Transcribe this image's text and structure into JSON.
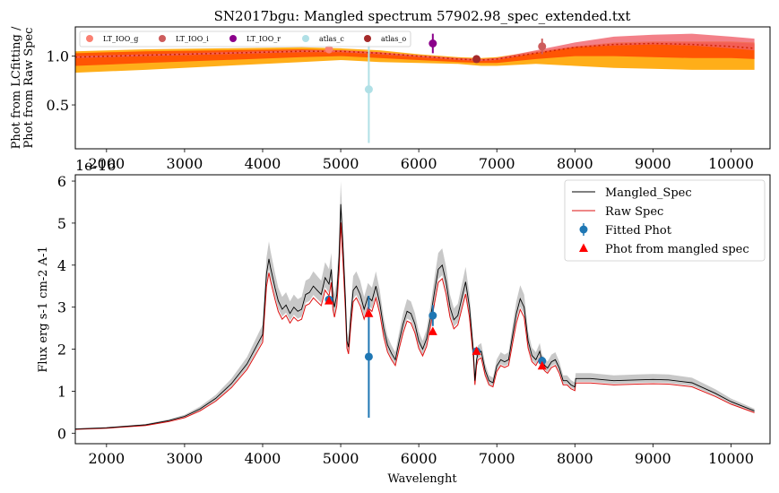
{
  "colors": {
    "LT_IOO_g": "#fa8072",
    "LT_IOO_i": "#cd5c5c",
    "LT_IOO_r": "#8b008b",
    "atlas_c": "#b0e0e6",
    "atlas_o": "#a52a2a",
    "band_fill_1": "#ffa500",
    "band_fill_2": "#ff4500",
    "band_fill_3": "#f0606a",
    "mangled": "#000000",
    "raw": "#dd1111",
    "fitted": "#1f77b4",
    "mangled_phot": "#ff0000",
    "shade": "#c8c8c8"
  },
  "chart_data": [
    {
      "type": "scatter",
      "title": "SN2017bgu: Mangled spectrum 57902.98_spec_extended.txt",
      "ylabel_line1": "Phot from LCfitting /",
      "ylabel_line2": "Phot from Raw Spec",
      "xlim": [
        1600,
        10500
      ],
      "ylim": [
        0.05,
        1.3
      ],
      "xticks": [
        2000,
        3000,
        4000,
        5000,
        6000,
        7000,
        8000,
        9000,
        10000
      ],
      "xtick_labels": [
        "2000",
        "3000",
        "4000",
        "5000",
        "6000",
        "7000",
        "8000",
        "9000",
        "10000"
      ],
      "yticks": [
        0.5,
        1.0
      ],
      "ytick_labels": [
        "0.5",
        "1.0"
      ],
      "offset_text": "1e-16",
      "legend_position": "top-left",
      "legend": [
        {
          "name": "LT_IOO_g",
          "color": "#fa8072"
        },
        {
          "name": "LT_IOO_i",
          "color": "#cd5c5c"
        },
        {
          "name": "LT_IOO_r",
          "color": "#8b008b"
        },
        {
          "name": "atlas_c",
          "color": "#b0e0e6"
        },
        {
          "name": "atlas_o",
          "color": "#a52a2a"
        }
      ],
      "points": [
        {
          "name": "LT_IOO_g",
          "x": 4850,
          "y": 1.07,
          "yerr": 0.04
        },
        {
          "name": "LT_IOO_i",
          "x": 7580,
          "y": 1.1,
          "yerr": 0.08
        },
        {
          "name": "LT_IOO_r",
          "x": 6180,
          "y": 1.13,
          "yerr": 0.1
        },
        {
          "name": "atlas_c",
          "x": 5360,
          "y": 0.66,
          "yerr": 0.55
        },
        {
          "name": "atlas_o",
          "x": 6740,
          "y": 0.97,
          "yerr": 0.02
        }
      ],
      "bands": [
        {
          "x": [
            1600,
            2500,
            3500,
            4500,
            5000,
            5500,
            6000,
            6500,
            6800,
            7000,
            7500,
            8000,
            8500,
            9000,
            9500,
            10000,
            10300
          ],
          "lower": [
            0.83,
            0.86,
            0.9,
            0.94,
            0.96,
            0.94,
            0.93,
            0.92,
            0.9,
            0.9,
            0.92,
            0.9,
            0.88,
            0.87,
            0.86,
            0.86,
            0.86
          ],
          "upper": [
            1.05,
            1.07,
            1.08,
            1.09,
            1.08,
            1.06,
            1.02,
            0.99,
            0.98,
            0.99,
            1.05,
            1.1,
            1.14,
            1.15,
            1.15,
            1.15,
            1.14
          ]
        },
        {
          "x": [
            1600,
            2500,
            3500,
            4500,
            5000,
            5500,
            6000,
            6500,
            6800,
            7000,
            7500,
            8000,
            8500,
            9000,
            9500,
            10000,
            10300
          ],
          "lower": [
            0.9,
            0.93,
            0.96,
            0.99,
            1.0,
            0.98,
            0.96,
            0.94,
            0.93,
            0.93,
            0.97,
            1.0,
            1.0,
            0.99,
            0.98,
            0.98,
            0.97
          ],
          "upper": [
            1.03,
            1.05,
            1.06,
            1.07,
            1.06,
            1.04,
            1.0,
            0.98,
            0.97,
            0.98,
            1.04,
            1.1,
            1.13,
            1.14,
            1.14,
            1.14,
            1.13
          ]
        },
        {
          "x": [
            1600,
            2500,
            3500,
            4500,
            5000,
            5500,
            6000,
            6500,
            6800,
            7000,
            7500,
            8000,
            8500,
            9000,
            9500,
            10000,
            10300
          ],
          "lower": [
            0.98,
            1.0,
            1.02,
            1.04,
            1.04,
            1.02,
            0.99,
            0.96,
            0.95,
            0.96,
            1.03,
            1.09,
            1.11,
            1.12,
            1.11,
            1.08,
            1.06
          ],
          "upper": [
            1.0,
            1.02,
            1.04,
            1.06,
            1.06,
            1.04,
            1.01,
            0.98,
            0.97,
            0.98,
            1.06,
            1.14,
            1.2,
            1.22,
            1.23,
            1.2,
            1.18
          ]
        }
      ],
      "mean_line": {
        "x": [
          1600,
          2500,
          3500,
          4500,
          5000,
          5500,
          6000,
          6500,
          6800,
          7000,
          7500,
          8000,
          8500,
          9000,
          9500,
          10000,
          10300
        ],
        "y": [
          0.99,
          1.01,
          1.03,
          1.05,
          1.05,
          1.03,
          1.0,
          0.97,
          0.96,
          0.97,
          1.03,
          1.09,
          1.12,
          1.13,
          1.12,
          1.1,
          1.08
        ]
      }
    },
    {
      "type": "line",
      "xlabel": "Wavelenght",
      "ylabel": "Flux erg s-1 cm-2 A-1",
      "xlim": [
        1600,
        10500
      ],
      "ylim": [
        -0.25,
        6.15
      ],
      "xticks": [
        2000,
        3000,
        4000,
        5000,
        6000,
        7000,
        8000,
        9000,
        10000
      ],
      "xtick_labels": [
        "2000",
        "3000",
        "4000",
        "5000",
        "6000",
        "7000",
        "8000",
        "9000",
        "10000"
      ],
      "yticks": [
        0,
        1,
        2,
        3,
        4,
        5,
        6
      ],
      "ytick_labels": [
        "0",
        "1",
        "2",
        "3",
        "4",
        "5",
        "6"
      ],
      "legend_position": "top-right",
      "legend": [
        {
          "name": "Mangled_Spec",
          "kind": "line",
          "color": "#000000"
        },
        {
          "name": "Raw Spec",
          "kind": "line",
          "color": "#dd1111"
        },
        {
          "name": "Fitted Phot",
          "kind": "errorpoint",
          "color": "#1f77b4"
        },
        {
          "name": "Phot from mangled spec",
          "kind": "triangle",
          "color": "#ff0000"
        }
      ],
      "mangled_spec": {
        "x": [
          1600,
          2000,
          2500,
          2800,
          3000,
          3200,
          3400,
          3600,
          3800,
          4000,
          4050,
          4080,
          4100,
          4130,
          4160,
          4200,
          4250,
          4300,
          4350,
          4400,
          4450,
          4500,
          4550,
          4600,
          4650,
          4700,
          4750,
          4800,
          4850,
          4880,
          4900,
          4920,
          4950,
          4980,
          5000,
          5030,
          5060,
          5080,
          5100,
          5130,
          5160,
          5200,
          5250,
          5300,
          5350,
          5400,
          5450,
          5500,
          5550,
          5600,
          5650,
          5700,
          5750,
          5800,
          5850,
          5900,
          5950,
          6000,
          6050,
          6100,
          6150,
          6200,
          6250,
          6300,
          6350,
          6400,
          6450,
          6500,
          6550,
          6600,
          6650,
          6700,
          6720,
          6740,
          6760,
          6800,
          6850,
          6900,
          6950,
          7000,
          7050,
          7100,
          7150,
          7200,
          7250,
          7300,
          7350,
          7400,
          7450,
          7500,
          7550,
          7580,
          7620,
          7650,
          7700,
          7750,
          7800,
          7850,
          7900,
          7950,
          8000,
          8010,
          8200,
          8500,
          8800,
          9000,
          9200,
          9500,
          9800,
          10000,
          10300
        ],
        "y": [
          0.1,
          0.13,
          0.2,
          0.3,
          0.4,
          0.58,
          0.83,
          1.18,
          1.65,
          2.35,
          3.8,
          4.15,
          3.95,
          3.7,
          3.45,
          3.15,
          2.95,
          3.05,
          2.85,
          3.0,
          2.9,
          2.95,
          3.3,
          3.35,
          3.5,
          3.4,
          3.3,
          3.7,
          3.55,
          3.9,
          3.2,
          3.0,
          3.3,
          4.2,
          5.45,
          4.4,
          3.2,
          2.2,
          2.05,
          2.8,
          3.4,
          3.5,
          3.3,
          2.95,
          3.25,
          3.15,
          3.5,
          3.1,
          2.5,
          2.1,
          1.9,
          1.75,
          2.2,
          2.6,
          2.9,
          2.85,
          2.6,
          2.2,
          2.0,
          2.25,
          2.75,
          3.35,
          3.9,
          4.0,
          3.6,
          3.0,
          2.7,
          2.8,
          3.2,
          3.6,
          3.0,
          1.95,
          1.25,
          1.75,
          1.9,
          1.95,
          1.5,
          1.25,
          1.2,
          1.6,
          1.75,
          1.7,
          1.75,
          2.3,
          2.85,
          3.2,
          3.0,
          2.2,
          1.85,
          1.75,
          1.95,
          1.7,
          1.6,
          1.55,
          1.7,
          1.75,
          1.55,
          1.25,
          1.25,
          1.15,
          1.1,
          1.3,
          1.3,
          1.25,
          1.27,
          1.28,
          1.27,
          1.2,
          0.95,
          0.75,
          0.53
        ]
      },
      "raw_spec_scale": 0.92,
      "shade_width": 0.1,
      "fitted_phot": [
        {
          "x": 4850,
          "y": 3.18,
          "yerr": 0.08
        },
        {
          "x": 5360,
          "y": 1.82,
          "yerr": 1.45
        },
        {
          "x": 6180,
          "y": 2.8,
          "yerr": 0.25
        },
        {
          "x": 6740,
          "y": 1.95,
          "yerr": 0.05
        },
        {
          "x": 7580,
          "y": 1.72,
          "yerr": 0.1
        }
      ],
      "mangled_phot": [
        {
          "x": 4850,
          "y": 3.15
        },
        {
          "x": 5360,
          "y": 2.85
        },
        {
          "x": 6180,
          "y": 2.42
        },
        {
          "x": 6740,
          "y": 1.95
        },
        {
          "x": 7580,
          "y": 1.6
        }
      ]
    }
  ]
}
